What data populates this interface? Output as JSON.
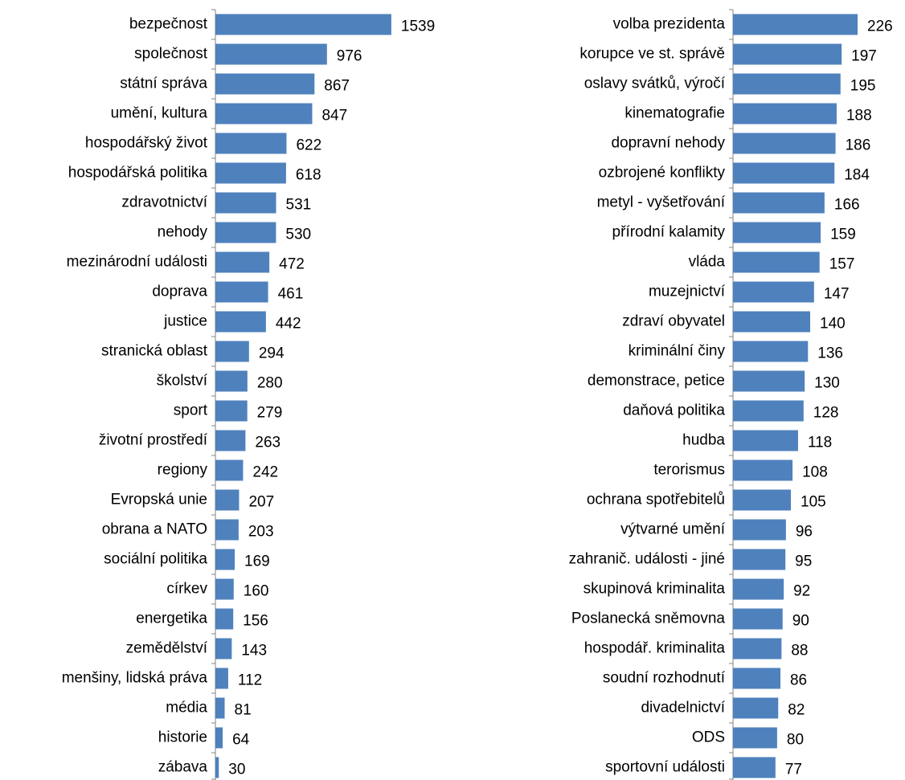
{
  "chart_data": [
    {
      "type": "bar",
      "orientation": "horizontal",
      "color": "#4f81bd",
      "xlim": [
        0,
        1800
      ],
      "categories": [
        "bezpečnost",
        "společnost",
        "státní správa",
        "umění, kultura",
        "hospodářský život",
        "hospodářská politika",
        "zdravotnictví",
        "nehody",
        "mezinárodní události",
        "doprava",
        "justice",
        "stranická oblast",
        "školství",
        "sport",
        "životní prostředí",
        "regiony",
        "Evropská unie",
        "obrana a NATO",
        "sociální politika",
        "církev",
        "energetika",
        "zemědělství",
        "menšiny, lidská práva",
        "média",
        "historie",
        "zábava"
      ],
      "values": [
        1539,
        976,
        867,
        847,
        622,
        618,
        531,
        530,
        472,
        461,
        442,
        294,
        280,
        279,
        263,
        242,
        207,
        203,
        169,
        160,
        156,
        143,
        112,
        81,
        64,
        30
      ]
    },
    {
      "type": "bar",
      "orientation": "horizontal",
      "color": "#4f81bd",
      "xlim": [
        0,
        250
      ],
      "categories": [
        "volba prezidenta",
        "korupce ve st. správě",
        "oslavy svátků, výročí",
        "kinematografie",
        "dopravní nehody",
        "ozbrojené konflikty",
        "metyl - vyšetřování",
        "přírodní kalamity",
        "vláda",
        "muzejnictví",
        "zdraví obyvatel",
        "kriminální činy",
        "demonstrace, petice",
        "daňová politika",
        "hudba",
        "terorismus",
        "ochrana spotřebitelů",
        "výtvarné umění",
        "zahranič. události - jiné",
        "skupinová kriminalita",
        "Poslanecká sněmovna",
        "hospodář. kriminalita",
        "soudní rozhodnutí",
        "divadelnictví",
        "ODS",
        "sportovní události"
      ],
      "values": [
        226,
        197,
        195,
        188,
        186,
        184,
        166,
        159,
        157,
        147,
        140,
        136,
        130,
        128,
        118,
        108,
        105,
        96,
        95,
        92,
        90,
        88,
        86,
        82,
        80,
        77
      ]
    }
  ]
}
